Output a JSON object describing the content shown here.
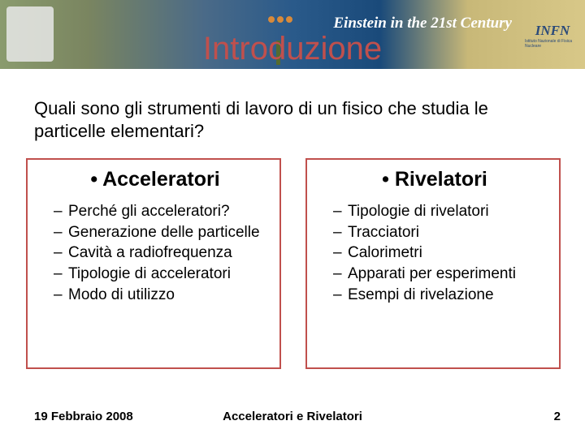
{
  "banner": {
    "einstein_text": "Einstein in the 21st Century",
    "infn": "INFN",
    "infn_sub": "Istituto Nazionale di Fisica Nucleare"
  },
  "title": "Introduzione",
  "question": "Quali sono gli strumenti di lavoro di un fisico che studia le particelle elementari?",
  "left_box": {
    "heading": "• Acceleratori",
    "items": [
      "Perché gli acceleratori?",
      "Generazione delle particelle",
      "Cavità a radiofrequenza",
      "Tipologie di acceleratori",
      "Modo di utilizzo"
    ]
  },
  "right_box": {
    "heading": "• Rivelatori",
    "items": [
      "Tipologie di rivelatori",
      "Tracciatori",
      "Calorimetri",
      "Apparati per esperimenti",
      "Esempi di rivelazione"
    ]
  },
  "footer": {
    "date": "19 Febbraio 2008",
    "center": "Acceleratori e Rivelatori",
    "page": "2"
  },
  "colors": {
    "accent": "#c0504d",
    "text": "#000000",
    "background": "#ffffff"
  }
}
